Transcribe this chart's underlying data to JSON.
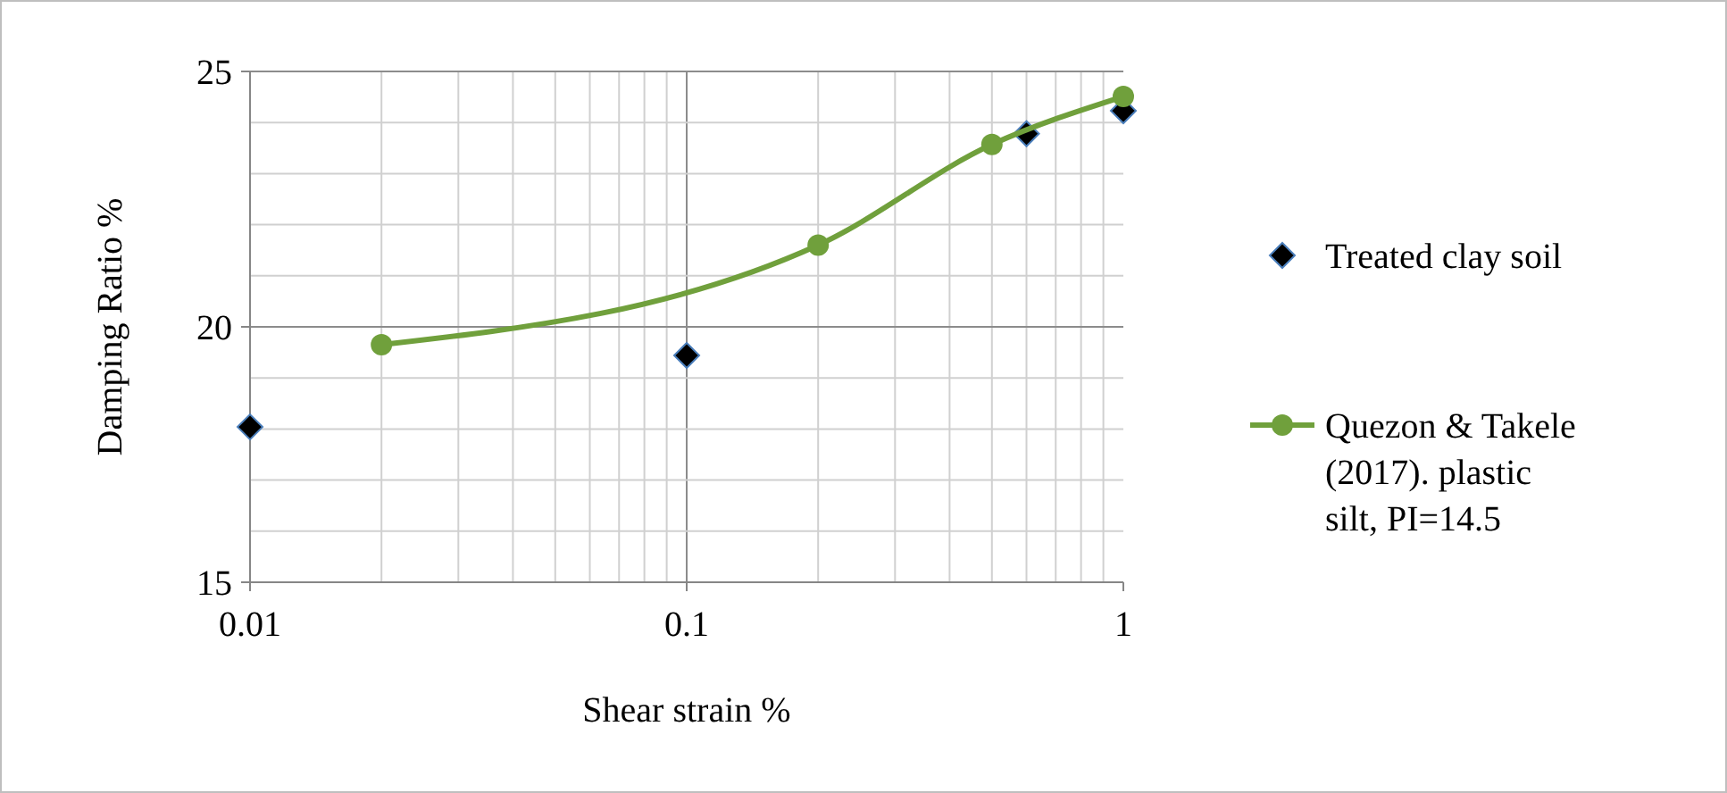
{
  "chart_data": {
    "type": "scatter",
    "xlabel": "Shear strain %",
    "ylabel": "Damping Ratio %",
    "log": "x",
    "grid": true,
    "legend": "right",
    "xlim": [
      0.01,
      1
    ],
    "xticks": [
      0.01,
      0.1,
      1
    ],
    "ylim": [
      15,
      25
    ],
    "yticks": [
      15,
      20,
      25
    ],
    "series": [
      {
        "name": "Treated clay soil",
        "marker": "diamond",
        "color": "#000000",
        "x": [
          0.01,
          0.1,
          0.6,
          1
        ],
        "values": [
          18.04,
          19.44,
          23.78,
          24.23
        ]
      },
      {
        "name": "Quezon & Takele (2017). plastic silt, PI=14.5",
        "type": "line",
        "marker": "circle",
        "color": "#70a03c",
        "x": [
          0.02,
          0.2,
          0.5,
          1
        ],
        "values": [
          19.65,
          21.6,
          23.57,
          24.51
        ]
      }
    ]
  }
}
